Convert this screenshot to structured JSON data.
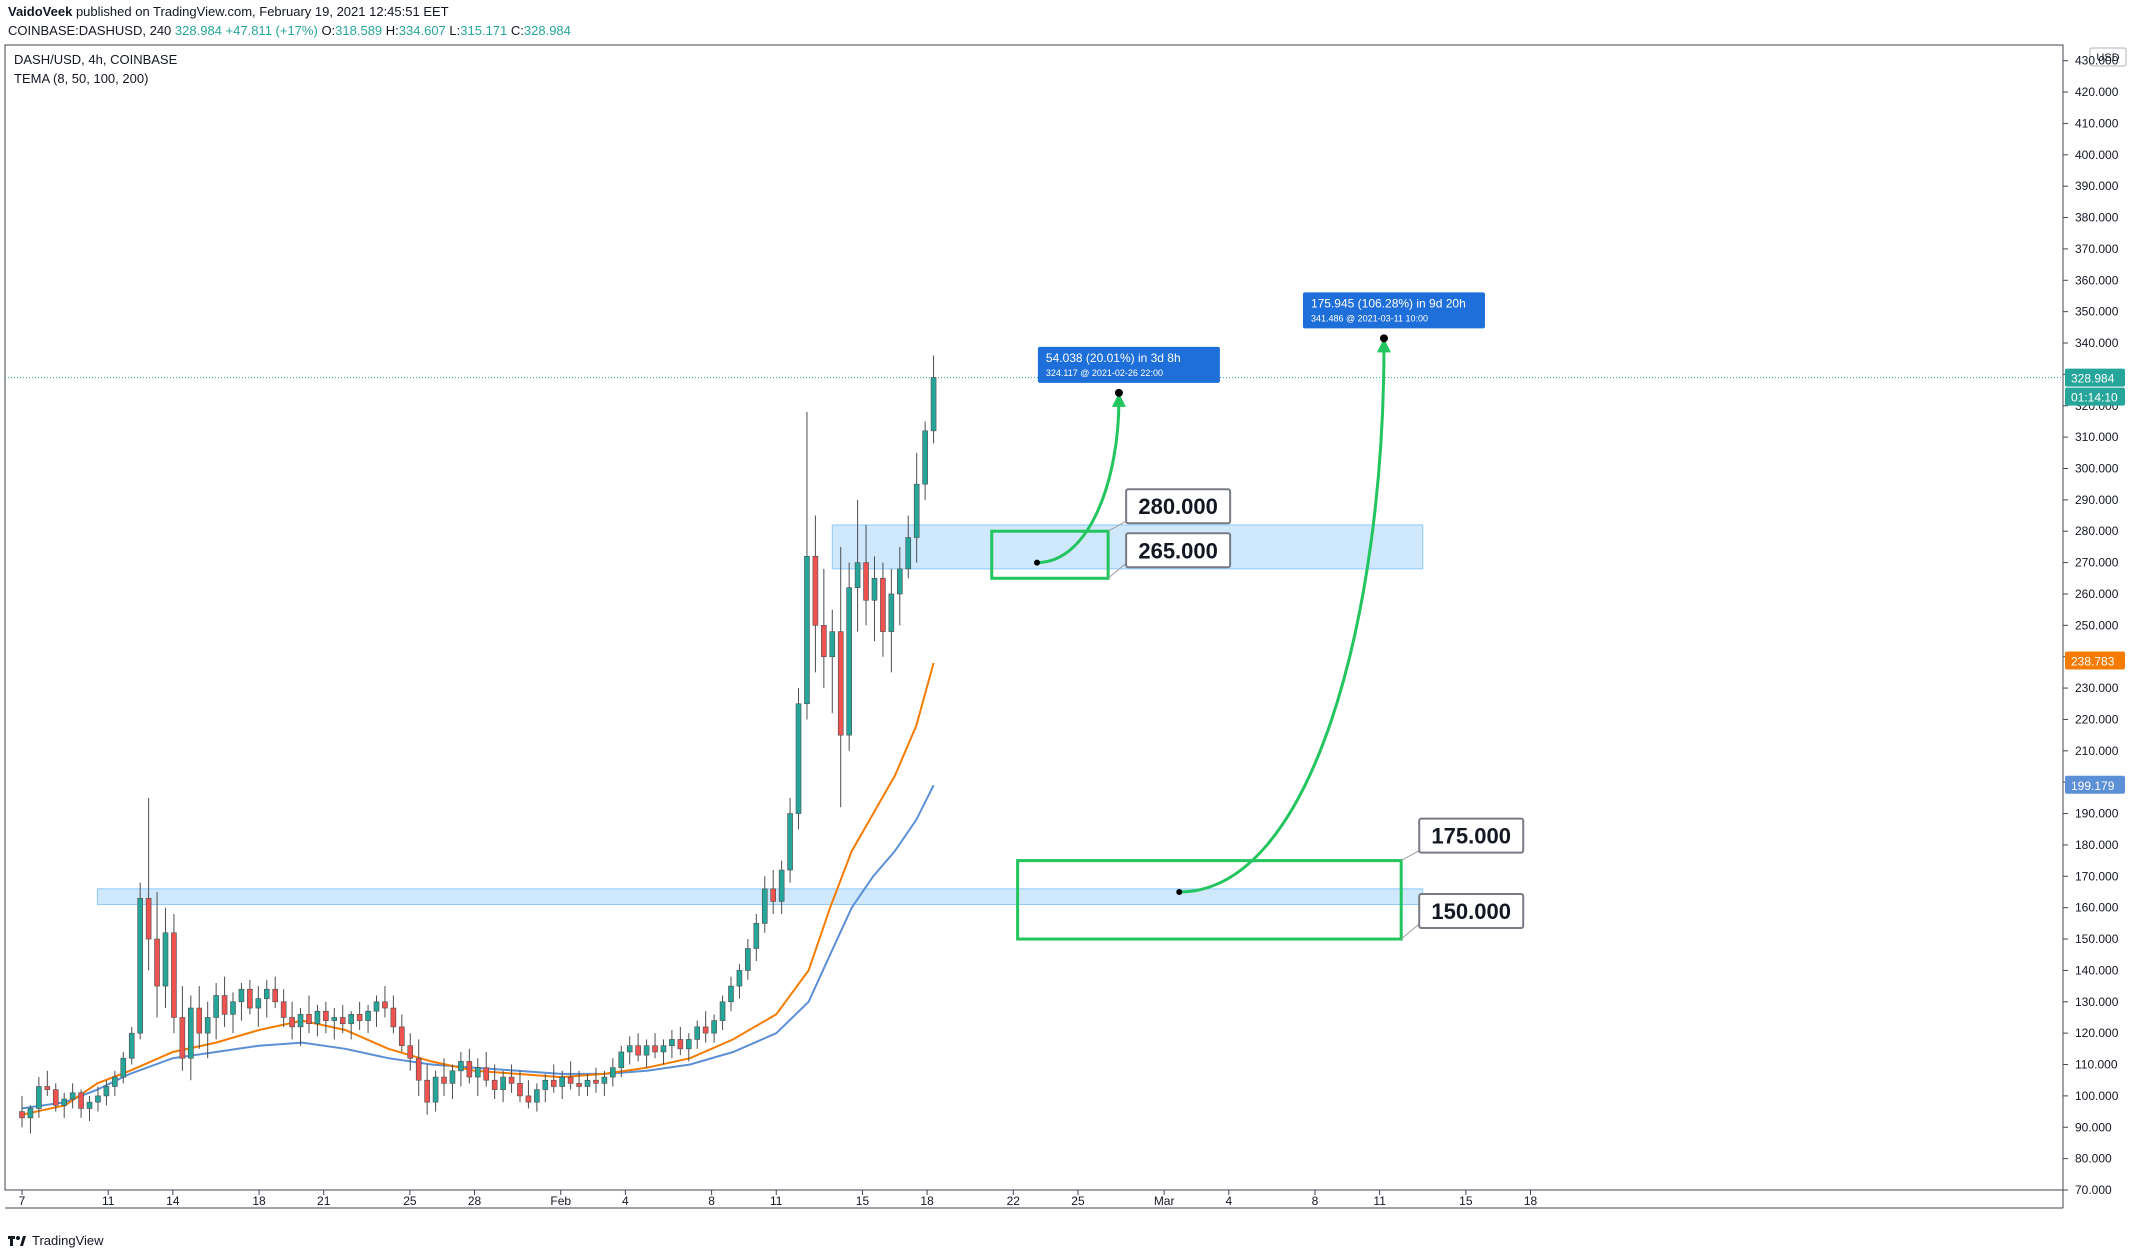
{
  "header": {
    "author": "VaidoVeek",
    "published_text": " published on TradingView.com, February 19, 2021 12:45:51 EET",
    "symbol": "COINBASE:DASHUSD, 240",
    "last": "328.984",
    "change": "+47.811 (+17%)",
    "o_label": "O:",
    "o": "318.589",
    "h_label": "H:",
    "h": "334.607",
    "l_label": "L:",
    "l": "315.171",
    "c_label": "C:",
    "c": "328.984"
  },
  "legend": {
    "title": "DASH/USD, 4h, COINBASE",
    "indicator": "TEMA (8, 50, 100, 200)"
  },
  "footer": {
    "brand": "TradingView"
  },
  "colors": {
    "up": "#26a69a",
    "down": "#ef5350",
    "candle": "#4d4d4d",
    "tema_orange": "#f57c00",
    "tema_blue": "#5b8fd6",
    "zone_fill": "#bbdefb",
    "zone_stroke": "#90caf9",
    "green_box": "#22c55e",
    "label_blue": "#1e6fd9"
  },
  "chart_data": {
    "type": "candlestick",
    "currency": "USD",
    "ylim": [
      70,
      435
    ],
    "y_ticks": [
      "70.000",
      "80.000",
      "90.000",
      "100.000",
      "110.000",
      "120.000",
      "130.000",
      "140.000",
      "150.000",
      "160.000",
      "170.000",
      "180.000",
      "190.000",
      "200.000",
      "210.000",
      "220.000",
      "230.000",
      "240.000",
      "250.000",
      "260.000",
      "270.000",
      "280.000",
      "290.000",
      "300.000",
      "310.000",
      "320.000",
      "330.000",
      "340.000",
      "350.000",
      "360.000",
      "370.000",
      "380.000",
      "390.000",
      "400.000",
      "410.000",
      "420.000",
      "430.000"
    ],
    "x_ticks": [
      {
        "label": "7",
        "day": 7
      },
      {
        "label": "11",
        "day": 11
      },
      {
        "label": "14",
        "day": 14
      },
      {
        "label": "18",
        "day": 18
      },
      {
        "label": "21",
        "day": 21
      },
      {
        "label": "25",
        "day": 25
      },
      {
        "label": "28",
        "day": 28
      },
      {
        "label": "Feb",
        "day": 32
      },
      {
        "label": "4",
        "day": 35
      },
      {
        "label": "8",
        "day": 39
      },
      {
        "label": "11",
        "day": 42
      },
      {
        "label": "15",
        "day": 46
      },
      {
        "label": "18",
        "day": 49
      },
      {
        "label": "22",
        "day": 53
      },
      {
        "label": "25",
        "day": 56
      },
      {
        "label": "Mar",
        "day": 60
      },
      {
        "label": "4",
        "day": 63
      },
      {
        "label": "8",
        "day": 67
      },
      {
        "label": "11",
        "day": 70
      },
      {
        "label": "15",
        "day": 74
      },
      {
        "label": "18",
        "day": 77
      }
    ],
    "price_axis_labels": [
      {
        "value": 328.984,
        "text": "328.984",
        "color": "#26a69a"
      },
      {
        "text": "01:14:10",
        "color": "#26a69a"
      },
      {
        "value": 238.783,
        "text": "238.783",
        "color": "#f57c00"
      },
      {
        "value": 199.179,
        "text": "199.179",
        "color": "#5b8fd6"
      }
    ],
    "last_price": 328.984,
    "zones": [
      {
        "from_day": 10.5,
        "to_day": 72,
        "low": 161,
        "high": 166
      },
      {
        "from_day": 44.6,
        "to_day": 72,
        "low": 268,
        "high": 282
      }
    ],
    "green_boxes": [
      {
        "from_day": 52,
        "to_day": 57.4,
        "low": 265,
        "high": 280,
        "labels": [
          {
            "text": "280.000"
          },
          {
            "text": "265.000"
          }
        ]
      },
      {
        "from_day": 53.2,
        "to_day": 71,
        "low": 150,
        "high": 175,
        "labels": [
          {
            "text": "175.000"
          },
          {
            "text": "150.000"
          }
        ]
      }
    ],
    "projections": [
      {
        "start_day": 54.1,
        "start_price": 270,
        "end_day": 57.9,
        "end_price": 324.117,
        "label1": "54.038 (20.01%) in 3d 8h",
        "label2": "324.117 @ 2021-02-26  22:00"
      },
      {
        "start_day": 60.7,
        "start_price": 165,
        "end_day": 70.2,
        "end_price": 341.486,
        "label1": "175.945 (106.28%) in 9d 20h",
        "label2": "341.486 @ 2021-03-11  10:00"
      }
    ],
    "candles": [
      [
        95,
        100,
        90,
        93
      ],
      [
        93,
        97,
        88,
        96
      ],
      [
        96,
        106,
        93,
        103
      ],
      [
        103,
        108,
        100,
        102
      ],
      [
        102,
        104,
        95,
        97
      ],
      [
        97,
        101,
        93,
        99
      ],
      [
        99,
        104,
        96,
        101
      ],
      [
        101,
        102,
        93,
        96
      ],
      [
        96,
        100,
        92,
        98
      ],
      [
        98,
        103,
        95,
        100
      ],
      [
        100,
        105,
        97,
        103
      ],
      [
        103,
        108,
        100,
        106
      ],
      [
        106,
        114,
        104,
        112
      ],
      [
        112,
        122,
        110,
        120
      ],
      [
        120,
        168,
        118,
        163
      ],
      [
        163,
        195,
        140,
        150
      ],
      [
        150,
        165,
        125,
        135
      ],
      [
        135,
        160,
        128,
        152
      ],
      [
        152,
        158,
        120,
        125
      ],
      [
        125,
        135,
        108,
        112
      ],
      [
        112,
        132,
        105,
        128
      ],
      [
        128,
        135,
        115,
        120
      ],
      [
        120,
        130,
        112,
        125
      ],
      [
        125,
        136,
        118,
        132
      ],
      [
        132,
        138,
        122,
        126
      ],
      [
        126,
        133,
        120,
        130
      ],
      [
        130,
        136,
        124,
        134
      ],
      [
        134,
        137,
        126,
        128
      ],
      [
        128,
        135,
        122,
        131
      ],
      [
        131,
        137,
        125,
        134
      ],
      [
        134,
        138,
        128,
        130
      ],
      [
        130,
        134,
        122,
        125
      ],
      [
        125,
        130,
        118,
        122
      ],
      [
        122,
        128,
        116,
        126
      ],
      [
        126,
        132,
        120,
        123
      ],
      [
        123,
        129,
        119,
        127
      ],
      [
        127,
        130,
        120,
        124
      ],
      [
        124,
        128,
        118,
        125
      ],
      [
        125,
        129,
        120,
        123
      ],
      [
        123,
        127,
        118,
        126
      ],
      [
        126,
        130,
        121,
        124
      ],
      [
        124,
        129,
        120,
        127
      ],
      [
        127,
        132,
        122,
        130
      ],
      [
        130,
        135,
        125,
        128
      ],
      [
        128,
        132,
        120,
        122
      ],
      [
        122,
        126,
        114,
        116
      ],
      [
        116,
        120,
        108,
        112
      ],
      [
        112,
        118,
        100,
        105
      ],
      [
        105,
        110,
        94,
        98
      ],
      [
        98,
        108,
        95,
        106
      ],
      [
        106,
        112,
        100,
        104
      ],
      [
        104,
        110,
        99,
        108
      ],
      [
        108,
        114,
        103,
        111
      ],
      [
        111,
        115,
        104,
        106
      ],
      [
        106,
        112,
        100,
        109
      ],
      [
        109,
        114,
        103,
        105
      ],
      [
        105,
        110,
        99,
        102
      ],
      [
        102,
        108,
        98,
        106
      ],
      [
        106,
        110,
        101,
        104
      ],
      [
        104,
        108,
        98,
        100
      ],
      [
        100,
        105,
        96,
        98
      ],
      [
        98,
        104,
        95,
        102
      ],
      [
        102,
        107,
        98,
        105
      ],
      [
        105,
        110,
        101,
        103
      ],
      [
        103,
        108,
        99,
        106
      ],
      [
        106,
        111,
        102,
        104
      ],
      [
        104,
        108,
        100,
        103
      ],
      [
        103,
        107,
        100,
        105
      ],
      [
        105,
        109,
        101,
        104
      ],
      [
        104,
        108,
        100,
        106
      ],
      [
        106,
        112,
        103,
        109
      ],
      [
        109,
        116,
        106,
        114
      ],
      [
        114,
        119,
        110,
        116
      ],
      [
        116,
        120,
        111,
        113
      ],
      [
        113,
        118,
        109,
        116
      ],
      [
        116,
        120,
        112,
        114
      ],
      [
        114,
        118,
        110,
        116
      ],
      [
        116,
        121,
        112,
        118
      ],
      [
        118,
        122,
        113,
        115
      ],
      [
        115,
        120,
        111,
        118
      ],
      [
        118,
        124,
        115,
        122
      ],
      [
        122,
        127,
        117,
        120
      ],
      [
        120,
        126,
        117,
        124
      ],
      [
        124,
        132,
        121,
        130
      ],
      [
        130,
        138,
        127,
        135
      ],
      [
        135,
        142,
        131,
        140
      ],
      [
        140,
        150,
        137,
        147
      ],
      [
        147,
        158,
        143,
        155
      ],
      [
        155,
        170,
        152,
        166
      ],
      [
        166,
        172,
        158,
        162
      ],
      [
        162,
        175,
        158,
        172
      ],
      [
        172,
        195,
        168,
        190
      ],
      [
        190,
        230,
        185,
        225
      ],
      [
        225,
        318,
        220,
        272
      ],
      [
        272,
        285,
        235,
        250
      ],
      [
        250,
        268,
        230,
        240
      ],
      [
        240,
        255,
        222,
        248
      ],
      [
        248,
        275,
        192,
        215
      ],
      [
        215,
        270,
        210,
        262
      ],
      [
        262,
        290,
        248,
        270
      ],
      [
        270,
        282,
        250,
        258
      ],
      [
        258,
        272,
        245,
        265
      ],
      [
        265,
        270,
        240,
        248
      ],
      [
        248,
        268,
        235,
        260
      ],
      [
        260,
        275,
        250,
        268
      ],
      [
        268,
        285,
        265,
        278
      ],
      [
        278,
        305,
        270,
        295
      ],
      [
        295,
        315,
        290,
        312
      ],
      [
        312,
        336,
        308,
        329
      ]
    ],
    "tema_orange": [
      [
        7,
        94
      ],
      [
        9,
        97
      ],
      [
        10.5,
        104
      ],
      [
        12,
        108
      ],
      [
        14,
        114
      ],
      [
        16,
        117
      ],
      [
        18,
        121
      ],
      [
        20,
        124
      ],
      [
        22,
        121
      ],
      [
        24,
        115
      ],
      [
        26,
        111
      ],
      [
        28,
        108
      ],
      [
        30,
        107
      ],
      [
        32,
        106
      ],
      [
        34,
        107
      ],
      [
        36,
        109
      ],
      [
        38,
        112
      ],
      [
        40,
        118
      ],
      [
        42,
        126
      ],
      [
        43.5,
        140
      ],
      [
        44.5,
        160
      ],
      [
        45.5,
        178
      ],
      [
        46.5,
        190
      ],
      [
        47.5,
        202
      ],
      [
        48.5,
        218
      ],
      [
        49.3,
        238
      ]
    ],
    "tema_blue": [
      [
        7,
        96
      ],
      [
        9,
        98
      ],
      [
        10.5,
        102
      ],
      [
        12,
        107
      ],
      [
        14,
        112
      ],
      [
        16,
        114
      ],
      [
        18,
        116
      ],
      [
        20,
        117
      ],
      [
        22,
        115
      ],
      [
        24,
        112
      ],
      [
        26,
        110
      ],
      [
        28,
        109
      ],
      [
        30,
        108
      ],
      [
        32,
        107
      ],
      [
        34,
        107
      ],
      [
        36,
        108
      ],
      [
        38,
        110
      ],
      [
        40,
        114
      ],
      [
        42,
        120
      ],
      [
        43.5,
        130
      ],
      [
        44.5,
        145
      ],
      [
        45.5,
        160
      ],
      [
        46.5,
        170
      ],
      [
        47.5,
        178
      ],
      [
        48.5,
        188
      ],
      [
        49.3,
        199
      ]
    ]
  }
}
